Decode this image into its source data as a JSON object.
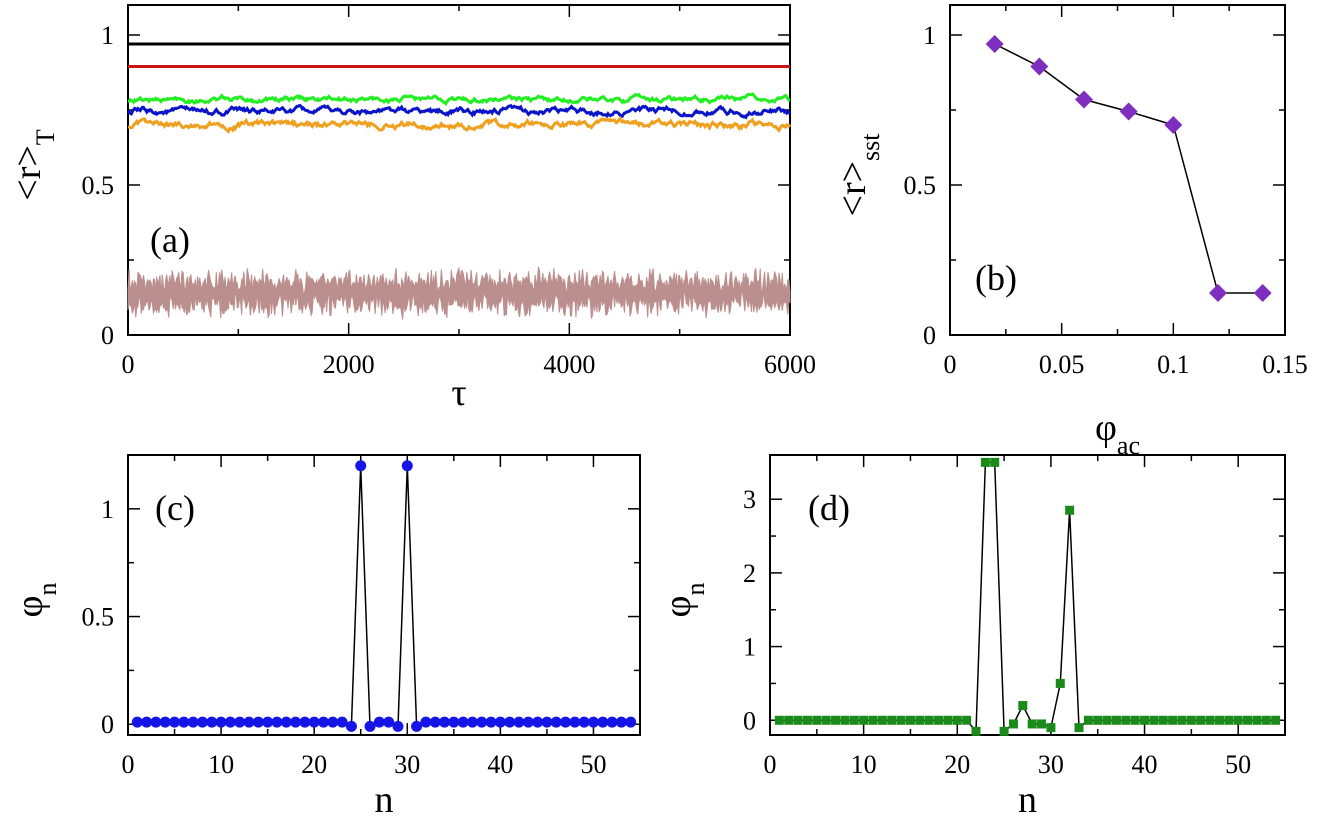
{
  "chart_data": [
    {
      "panel": "a",
      "type": "line",
      "label": "(a)",
      "xlabel": "τ",
      "ylabel": "<r>",
      "ylabel_sub": "T",
      "xlim": [
        0,
        6000
      ],
      "ylim": [
        0,
        1.1
      ],
      "xticks": [
        0,
        2000,
        4000,
        6000
      ],
      "yticks": [
        0,
        0.5,
        1
      ],
      "xtick_labels": [
        "0",
        "2000",
        "4000",
        "6000"
      ],
      "ytick_labels": [
        "0",
        "0.5",
        "1"
      ],
      "series": [
        {
          "name": "black",
          "color": "#000000",
          "mean": 0.97,
          "noise": 0.0,
          "fill": false
        },
        {
          "name": "red",
          "color": "#cc1111",
          "mean": 0.895,
          "noise": 0.0,
          "fill": false
        },
        {
          "name": "green",
          "color": "#22ee22",
          "mean": 0.785,
          "noise": 0.012,
          "fill": false
        },
        {
          "name": "blue",
          "color": "#0a14c8",
          "mean": 0.745,
          "noise": 0.014,
          "fill": false
        },
        {
          "name": "orange",
          "color": "#f0a020",
          "mean": 0.7,
          "noise": 0.015,
          "fill": false
        },
        {
          "name": "brown",
          "color": "#bc8f8f",
          "mean": 0.14,
          "noise": 0.05,
          "fill": true
        }
      ]
    },
    {
      "panel": "b",
      "type": "line",
      "label": "(b)",
      "xlabel": "φ",
      "xlabel_sub": "ac",
      "ylabel": "<r>",
      "ylabel_sub": "sst",
      "xlim": [
        0,
        0.15
      ],
      "ylim": [
        0,
        1.1
      ],
      "xticks": [
        0,
        0.05,
        0.1,
        0.15
      ],
      "yticks": [
        0,
        0.5,
        1
      ],
      "xtick_labels": [
        "0",
        "0.05",
        "0.1",
        "0.15"
      ],
      "ytick_labels": [
        "0",
        "0.5",
        "1"
      ],
      "marker": "diamond",
      "marker_color": "#7f2fbf",
      "x": [
        0.02,
        0.04,
        0.06,
        0.08,
        0.1,
        0.12,
        0.14
      ],
      "y": [
        0.97,
        0.895,
        0.785,
        0.745,
        0.7,
        0.14,
        0.14
      ]
    },
    {
      "panel": "c",
      "type": "line",
      "label": "(c)",
      "xlabel": "n",
      "ylabel": "φ",
      "ylabel_sub": "n",
      "xlim": [
        0,
        55
      ],
      "ylim": [
        -0.05,
        1.25
      ],
      "xticks": [
        0,
        10,
        20,
        30,
        40,
        50
      ],
      "yticks": [
        0,
        0.5,
        1
      ],
      "xtick_labels": [
        "0",
        "10",
        "20",
        "30",
        "40",
        "50"
      ],
      "ytick_labels": [
        "0",
        "0.5",
        "1"
      ],
      "marker": "circle",
      "marker_color": "#1515e8",
      "x": [
        1,
        2,
        3,
        4,
        5,
        6,
        7,
        8,
        9,
        10,
        11,
        12,
        13,
        14,
        15,
        16,
        17,
        18,
        19,
        20,
        21,
        22,
        23,
        24,
        25,
        26,
        27,
        28,
        29,
        30,
        31,
        32,
        33,
        34,
        35,
        36,
        37,
        38,
        39,
        40,
        41,
        42,
        43,
        44,
        45,
        46,
        47,
        48,
        49,
        50,
        51,
        52,
        53,
        54
      ],
      "y": [
        0.01,
        0.01,
        0.01,
        0.01,
        0.01,
        0.01,
        0.01,
        0.01,
        0.01,
        0.01,
        0.01,
        0.01,
        0.01,
        0.01,
        0.01,
        0.01,
        0.01,
        0.01,
        0.01,
        0.01,
        0.01,
        0.01,
        0.01,
        -0.01,
        1.2,
        -0.01,
        0.01,
        0.01,
        -0.01,
        1.2,
        -0.01,
        0.01,
        0.01,
        0.01,
        0.01,
        0.01,
        0.01,
        0.01,
        0.01,
        0.01,
        0.01,
        0.01,
        0.01,
        0.01,
        0.01,
        0.01,
        0.01,
        0.01,
        0.01,
        0.01,
        0.01,
        0.01,
        0.01,
        0.01
      ]
    },
    {
      "panel": "d",
      "type": "line",
      "label": "(d)",
      "xlabel": "n",
      "ylabel": "φ",
      "ylabel_sub": "n",
      "xlim": [
        0,
        55
      ],
      "ylim": [
        -0.2,
        3.6
      ],
      "xticks": [
        0,
        10,
        20,
        30,
        40,
        50
      ],
      "yticks": [
        0,
        1,
        2,
        3
      ],
      "xtick_labels": [
        "0",
        "10",
        "20",
        "30",
        "40",
        "50"
      ],
      "ytick_labels": [
        "0",
        "1",
        "2",
        "3"
      ],
      "marker": "square",
      "marker_color": "#1a8a1a",
      "x": [
        1,
        2,
        3,
        4,
        5,
        6,
        7,
        8,
        9,
        10,
        11,
        12,
        13,
        14,
        15,
        16,
        17,
        18,
        19,
        20,
        21,
        22,
        23,
        24,
        25,
        26,
        27,
        28,
        29,
        30,
        31,
        32,
        33,
        34,
        35,
        36,
        37,
        38,
        39,
        40,
        41,
        42,
        43,
        44,
        45,
        46,
        47,
        48,
        49,
        50,
        51,
        52,
        53,
        54
      ],
      "y": [
        0,
        0,
        0,
        0,
        0,
        0,
        0,
        0,
        0,
        0,
        0,
        0,
        0,
        0,
        0,
        0,
        0,
        0,
        0,
        0,
        0,
        -0.15,
        3.5,
        3.5,
        -0.15,
        -0.05,
        0.2,
        -0.05,
        -0.05,
        -0.1,
        0.5,
        2.85,
        -0.1,
        0,
        0,
        0,
        0,
        0,
        0,
        0,
        0,
        0,
        0,
        0,
        0,
        0,
        0,
        0,
        0,
        0,
        0,
        0,
        0,
        0
      ]
    }
  ]
}
